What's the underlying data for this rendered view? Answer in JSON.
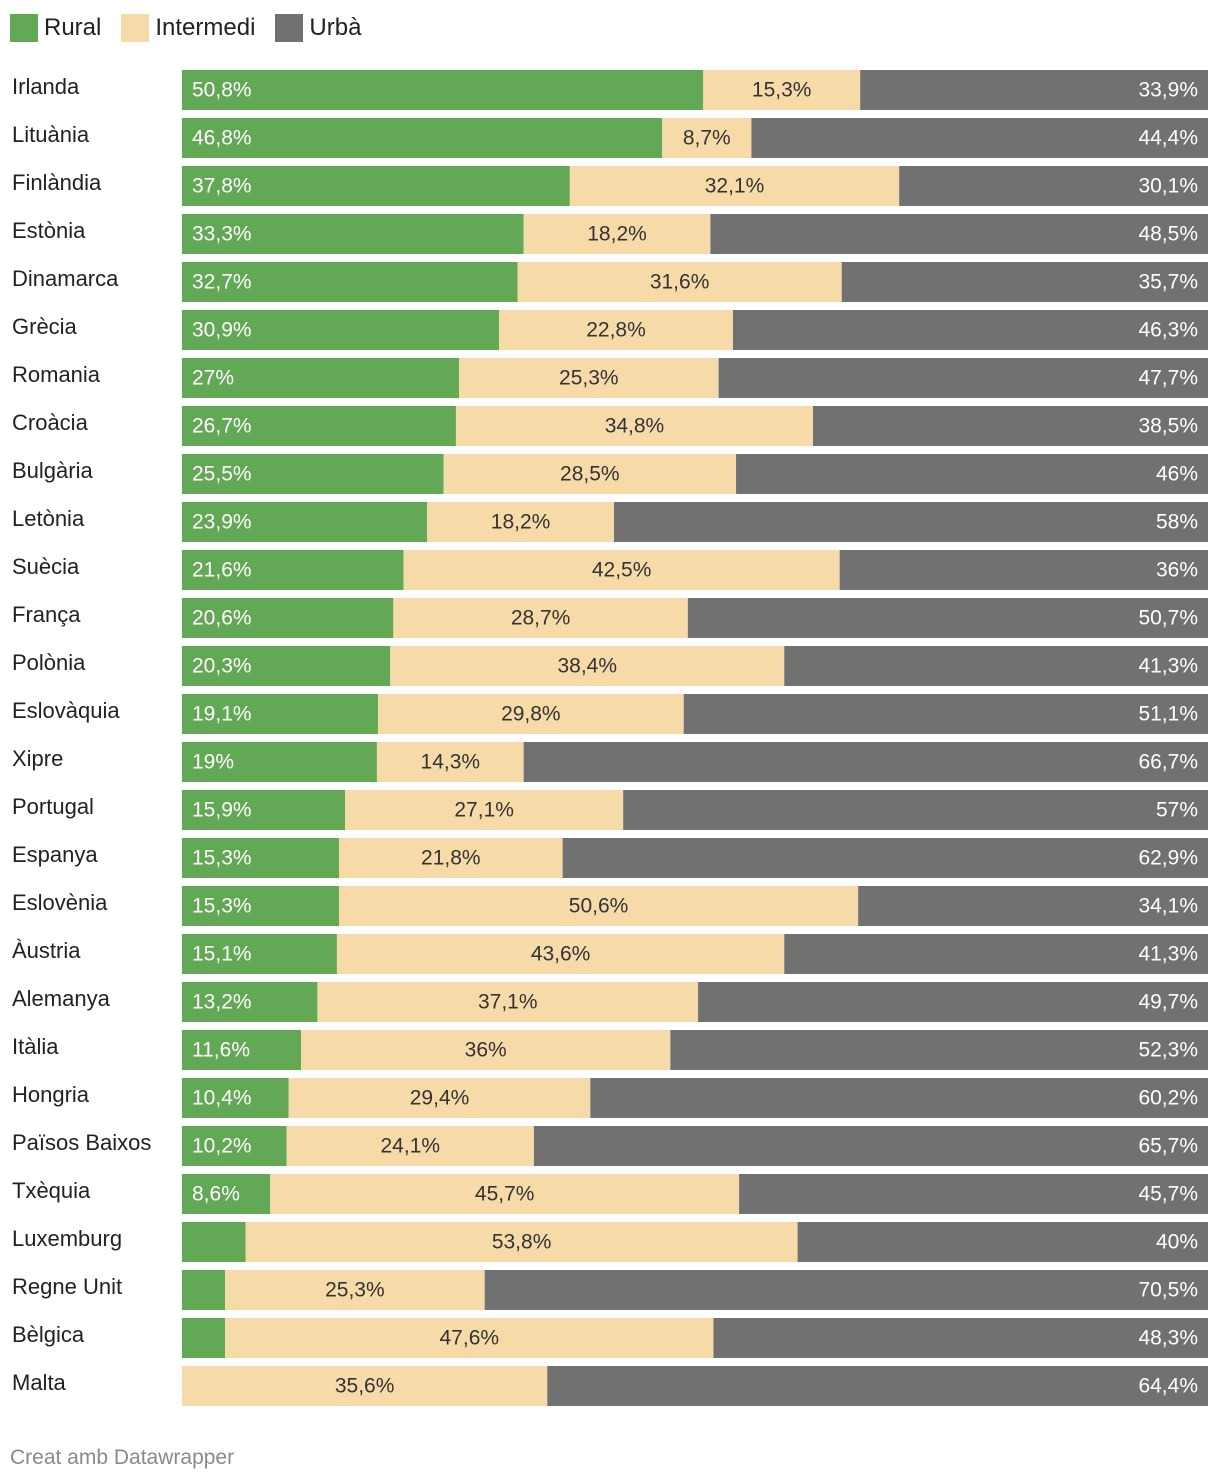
{
  "colors": {
    "rural": "#63a855",
    "intermedi": "#f6dba9",
    "urba": "#717171"
  },
  "legend": [
    {
      "label": "Rural",
      "color": "#63a855"
    },
    {
      "label": "Intermedi",
      "color": "#f6dba9"
    },
    {
      "label": "Urbà",
      "color": "#717171"
    }
  ],
  "footer": "Creat amb Datawrapper",
  "chart_data": {
    "type": "bar",
    "orientation": "horizontal",
    "stacked": true,
    "xlim": [
      0,
      100
    ],
    "categories": [
      "Irlanda",
      "Lituània",
      "Finlàndia",
      "Estònia",
      "Dinamarca",
      "Grècia",
      "Romania",
      "Croàcia",
      "Bulgària",
      "Letònia",
      "Suècia",
      "França",
      "Polònia",
      "Eslovàquia",
      "Xipre",
      "Portugal",
      "Espanya",
      "Eslovènia",
      "Àustria",
      "Alemanya",
      "Itàlia",
      "Hongria",
      "Països Baixos",
      "Txèquia",
      "Luxemburg",
      "Regne Unit",
      "Bèlgica",
      "Malta"
    ],
    "series": [
      {
        "name": "Rural",
        "values": [
          50.8,
          46.8,
          37.8,
          33.3,
          32.7,
          30.9,
          27,
          26.7,
          25.5,
          23.9,
          21.6,
          20.6,
          20.3,
          19.1,
          19,
          15.9,
          15.3,
          15.3,
          15.1,
          13.2,
          11.6,
          10.4,
          10.2,
          8.6,
          6.2,
          4.2,
          4.2,
          0
        ],
        "labels": [
          "50,8%",
          "46,8%",
          "37,8%",
          "33,3%",
          "32,7%",
          "30,9%",
          "27%",
          "26,7%",
          "25,5%",
          "23,9%",
          "21,6%",
          "20,6%",
          "20,3%",
          "19,1%",
          "19%",
          "15,9%",
          "15,3%",
          "15,3%",
          "15,1%",
          "13,2%",
          "11,6%",
          "10,4%",
          "10,2%",
          "8,6%",
          "",
          "",
          "",
          ""
        ]
      },
      {
        "name": "Intermedi",
        "values": [
          15.3,
          8.7,
          32.1,
          18.2,
          31.6,
          22.8,
          25.3,
          34.8,
          28.5,
          18.2,
          42.5,
          28.7,
          38.4,
          29.8,
          14.3,
          27.1,
          21.8,
          50.6,
          43.6,
          37.1,
          36,
          29.4,
          24.1,
          45.7,
          53.8,
          25.3,
          47.6,
          35.6
        ],
        "labels": [
          "15,3%",
          "8,7%",
          "32,1%",
          "18,2%",
          "31,6%",
          "22,8%",
          "25,3%",
          "34,8%",
          "28,5%",
          "18,2%",
          "42,5%",
          "28,7%",
          "38,4%",
          "29,8%",
          "14,3%",
          "27,1%",
          "21,8%",
          "50,6%",
          "43,6%",
          "37,1%",
          "36%",
          "29,4%",
          "24,1%",
          "45,7%",
          "53,8%",
          "25,3%",
          "47,6%",
          "35,6%"
        ]
      },
      {
        "name": "Urbà",
        "values": [
          33.9,
          44.4,
          30.1,
          48.5,
          35.7,
          46.3,
          47.7,
          38.5,
          46,
          58,
          36,
          50.7,
          41.3,
          51.1,
          66.7,
          57,
          62.9,
          34.1,
          41.3,
          49.7,
          52.3,
          60.2,
          65.7,
          45.7,
          40,
          70.5,
          48.3,
          64.4
        ],
        "labels": [
          "33,9%",
          "44,4%",
          "30,1%",
          "48,5%",
          "35,7%",
          "46,3%",
          "47,7%",
          "38,5%",
          "46%",
          "58%",
          "36%",
          "50,7%",
          "41,3%",
          "51,1%",
          "66,7%",
          "57%",
          "62,9%",
          "34,1%",
          "41,3%",
          "49,7%",
          "52,3%",
          "60,2%",
          "65,7%",
          "45,7%",
          "40%",
          "70,5%",
          "48,3%",
          "64,4%"
        ]
      }
    ]
  }
}
